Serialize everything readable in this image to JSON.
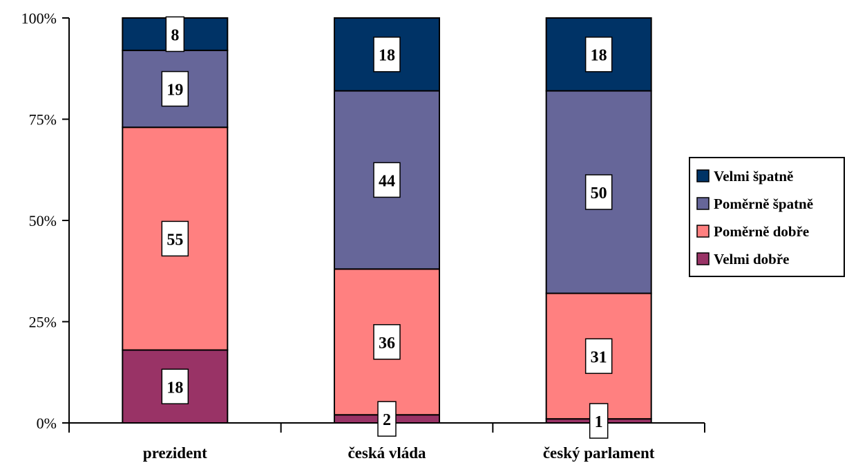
{
  "chart_data": {
    "type": "bar",
    "stacked": true,
    "percent": true,
    "categories": [
      "prezident",
      "česká vláda",
      "český parlament"
    ],
    "series": [
      {
        "name": "Velmi dobře",
        "values": [
          18,
          2,
          1
        ],
        "color": "#993366"
      },
      {
        "name": "Poměrně dobře",
        "values": [
          55,
          36,
          31
        ],
        "color": "#FF8080"
      },
      {
        "name": "Poměrně špatně",
        "values": [
          19,
          44,
          50
        ],
        "color": "#666699"
      },
      {
        "name": "Velmi špatně",
        "values": [
          8,
          18,
          18
        ],
        "color": "#003366"
      }
    ],
    "y_ticks": [
      "0%",
      "25%",
      "50%",
      "75%",
      "100%"
    ],
    "ylim": [
      0,
      100
    ],
    "grid": false,
    "legend_position": "right",
    "legend_order": [
      "Velmi špatně",
      "Poměrně špatně",
      "Poměrně dobře",
      "Velmi dobře"
    ]
  }
}
